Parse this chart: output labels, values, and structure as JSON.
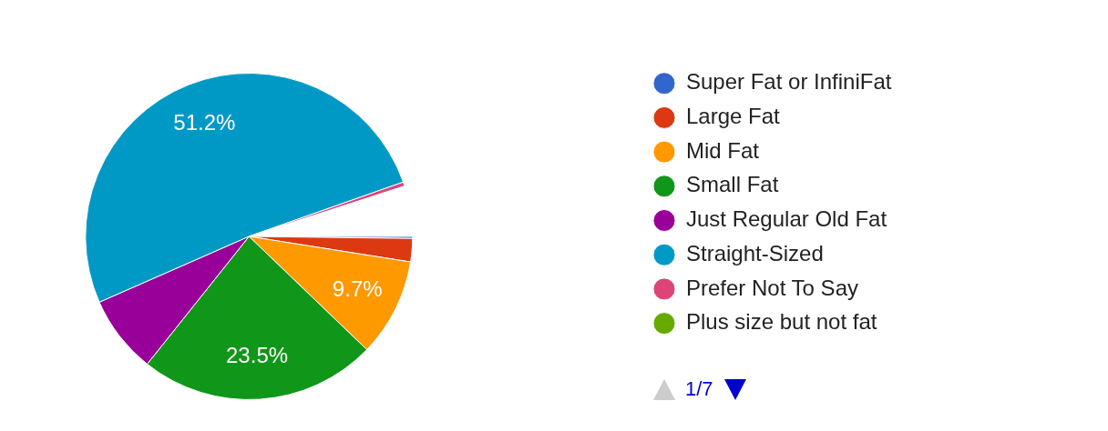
{
  "chart_data": {
    "type": "pie",
    "categories": [
      "Super Fat or InfiniFat",
      "Large Fat",
      "Mid Fat",
      "Small Fat",
      "Just Regular Old Fat",
      "Straight-Sized",
      "Prefer Not To Say",
      "Plus size but not fat"
    ],
    "values": [
      0.2,
      2.3,
      9.7,
      23.5,
      7.7,
      51.2,
      0.4,
      null
    ],
    "colors": [
      "#3366cc",
      "#dc3912",
      "#ff9900",
      "#109618",
      "#990099",
      "#0099c6",
      "#dd4477",
      "#66aa00"
    ],
    "value_labels": [
      null,
      null,
      "9.7%",
      "23.5%",
      null,
      "51.2%",
      null,
      null
    ],
    "legend": "right",
    "annotations": [
      "1/7"
    ]
  }
}
